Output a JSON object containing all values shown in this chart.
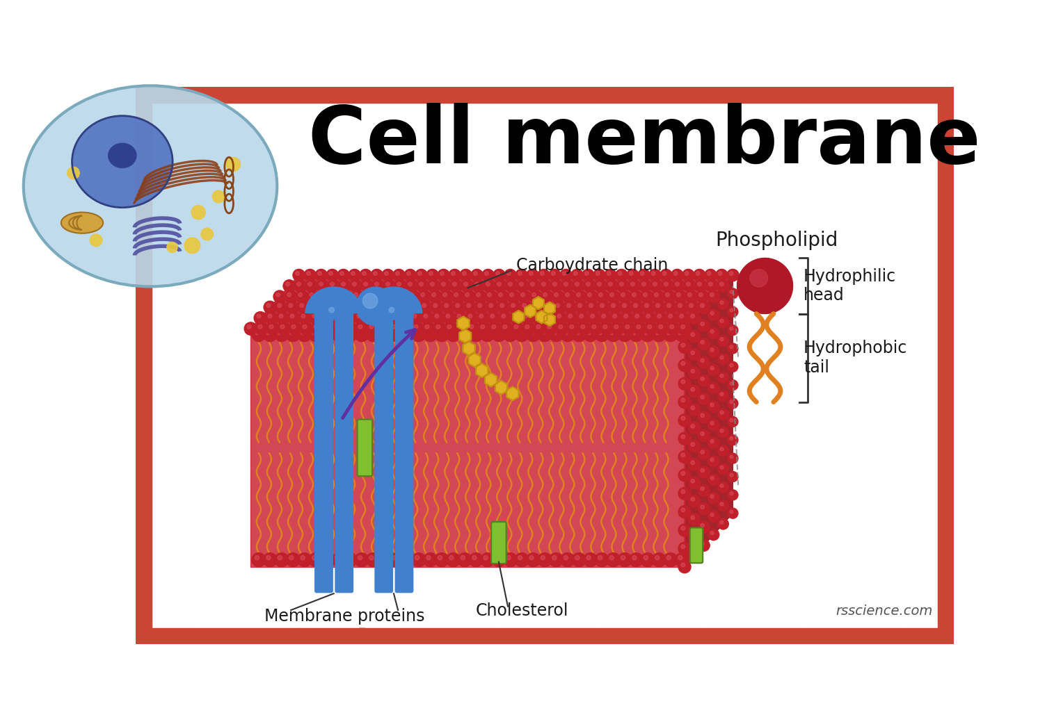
{
  "title": "Cell membrane",
  "background_color": "#ffffff",
  "border_color": "#cc4433",
  "label_carbohydrate": "Carboydrate chain",
  "label_phospholipid": "Phospholipid",
  "label_hydrophilic": "Hydrophilic\nhead",
  "label_hydrophobic": "Hydrophobic\ntail",
  "label_cholesterol": "Cholesterol",
  "label_membrane_proteins": "Membrane proteins",
  "label_credit": "rsscience.com",
  "colors": {
    "membrane_red": "#c0202a",
    "membrane_dark_red": "#8b0000",
    "membrane_highlight": "#e05060",
    "phospholipid_head": "#b01828",
    "tail_orange": "#e08020",
    "tail_dark": "#c06010",
    "protein_blue": "#4080cc",
    "protein_dark_blue": "#2060aa",
    "protein_green": "#80c030",
    "protein_dark_green": "#508020",
    "carb_yellow": "#e0b020",
    "carb_dark": "#c09010",
    "purple_arrow": "#6030a0",
    "label_color": "#1a1a1a",
    "title_color": "#000000"
  }
}
